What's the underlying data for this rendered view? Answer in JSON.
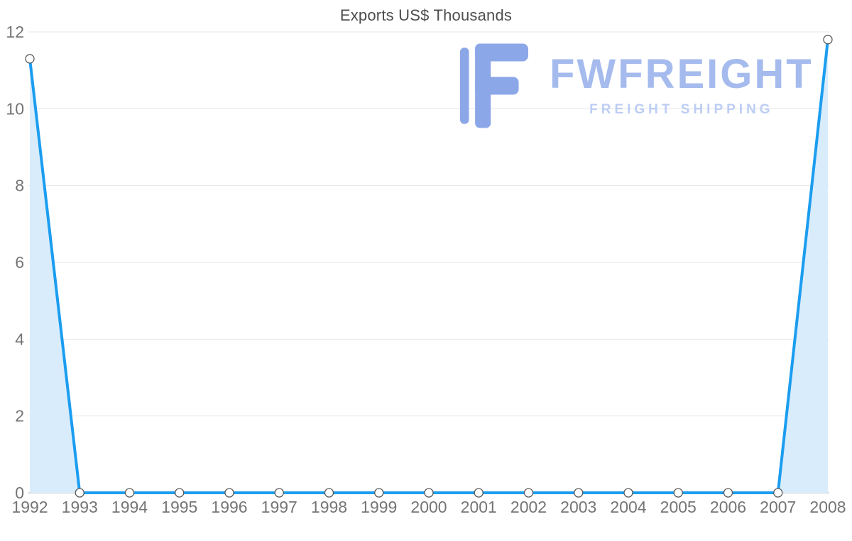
{
  "chart_data": {
    "type": "area",
    "title": "Exports US$ Thousands",
    "categories": [
      "1992",
      "1993",
      "1994",
      "1995",
      "1996",
      "1997",
      "1998",
      "1999",
      "2000",
      "2001",
      "2002",
      "2003",
      "2004",
      "2005",
      "2006",
      "2007",
      "2008"
    ],
    "values": [
      11.3,
      0,
      0,
      0,
      0,
      0,
      0,
      0,
      0,
      0,
      0,
      0,
      0,
      0,
      0,
      0,
      11.8
    ],
    "xlabel": "",
    "ylabel": "",
    "ylim": [
      0,
      12
    ],
    "yticks": [
      0,
      2,
      4,
      6,
      8,
      10,
      12
    ],
    "grid": "horizontal",
    "legend": "none",
    "colors": {
      "line": "#1b9df0",
      "fill": "#d9ecfc",
      "marker_fill": "#ffffff",
      "marker_stroke": "#595959",
      "grid": "#e6e6e6",
      "axis": "#c9c9c9",
      "tick_text": "#757575",
      "title_text": "#4d4d4d"
    }
  },
  "logo": {
    "name": "FWFREIGHT",
    "tagline": "FREIGHT SHIPPING",
    "colors": {
      "mark": "#8ca7e8",
      "text": "#a5bbee",
      "tagline": "#bdcdf4"
    }
  }
}
